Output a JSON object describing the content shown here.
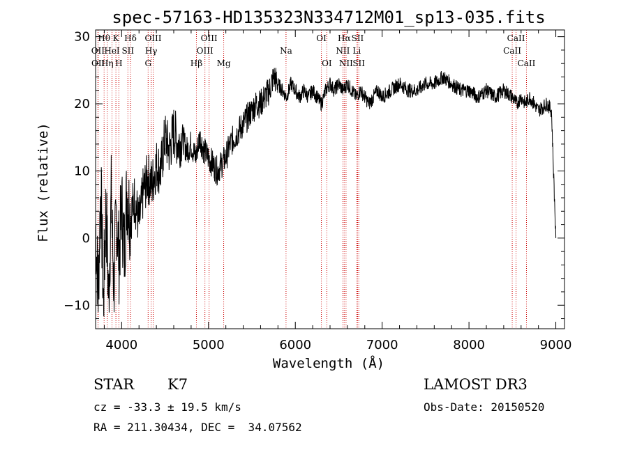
{
  "chart_data": {
    "type": "line",
    "title": "spec-57163-HD135323N334712M01_sp13-035.fits",
    "xlabel": "Wavelength (Å)",
    "ylabel": "Flux (relative)",
    "xlim": [
      3700,
      9100
    ],
    "ylim": [
      -13.5,
      31
    ],
    "x_ticks": [
      4000,
      5000,
      6000,
      7000,
      8000,
      9000
    ],
    "y_ticks": [
      -10,
      0,
      10,
      20,
      30
    ],
    "grid": false,
    "line_color": "#000000",
    "marker_color": "#cc0000",
    "series": [
      {
        "x": [
          3700,
          3730,
          3760,
          3790,
          3820,
          3850,
          3880,
          3910,
          3940,
          3970,
          4000,
          4030,
          4060,
          4100,
          4150,
          4200,
          4250,
          4300,
          4350,
          4400,
          4450,
          4500,
          4550,
          4600,
          4650,
          4700,
          4750,
          4800,
          4850,
          4900,
          4950,
          5000,
          5050,
          5100,
          5150,
          5200,
          5250,
          5300,
          5350,
          5400,
          5450,
          5500,
          5550,
          5600,
          5650,
          5700,
          5750,
          5800,
          5850,
          5900,
          5950,
          6000,
          6050,
          6100,
          6150,
          6200,
          6250,
          6300,
          6350,
          6400,
          6450,
          6500,
          6550,
          6600,
          6650,
          6700,
          6750,
          6800,
          6850,
          6900,
          6950,
          7000,
          7100,
          7200,
          7300,
          7400,
          7500,
          7600,
          7700,
          7800,
          7900,
          8000,
          8100,
          8200,
          8300,
          8400,
          8500,
          8550,
          8600,
          8650,
          8700,
          8800,
          8900,
          8950,
          9000
        ],
        "y": [
          2,
          -8,
          8,
          -10,
          5,
          -9,
          6,
          -7,
          4,
          -3,
          5,
          -2,
          7,
          3,
          6,
          2,
          7,
          9,
          8,
          11,
          10,
          15,
          13,
          16,
          14,
          15,
          13,
          14,
          12,
          15,
          13,
          12,
          11,
          10,
          11,
          12,
          14,
          15,
          16,
          17,
          18,
          19,
          20,
          20,
          21,
          22,
          24,
          23,
          22,
          21,
          23,
          22,
          21,
          22,
          21,
          22,
          21,
          20,
          22,
          23,
          22,
          23,
          22,
          23,
          22,
          21,
          22,
          21,
          20,
          21,
          22,
          21,
          22,
          23,
          22,
          22,
          23,
          23,
          24,
          23,
          22,
          22,
          21,
          22,
          21,
          22,
          21,
          20,
          21,
          20,
          21,
          19,
          20,
          19,
          0
        ]
      }
    ],
    "line_markers": [
      {
        "label": "OII",
        "wavelength": 3727,
        "row": 1
      },
      {
        "label": "OII",
        "wavelength": 3729,
        "row": 2
      },
      {
        "label": "Hθ",
        "wavelength": 3798,
        "row": 0
      },
      {
        "label": "Hη",
        "wavelength": 3835,
        "row": 2
      },
      {
        "label": "HeI",
        "wavelength": 3889,
        "row": 1
      },
      {
        "label": "K",
        "wavelength": 3934,
        "row": 0
      },
      {
        "label": "SII",
        "wavelength": 4072,
        "row": 1
      },
      {
        "label": "H",
        "wavelength": 3968,
        "row": 2
      },
      {
        "label": "Hδ",
        "wavelength": 4102,
        "row": 0
      },
      {
        "label": "OIII",
        "wavelength": 4363,
        "row": 0
      },
      {
        "label": "Hγ",
        "wavelength": 4340,
        "row": 1
      },
      {
        "label": "G",
        "wavelength": 4305,
        "row": 2
      },
      {
        "label": "Hβ",
        "wavelength": 4861,
        "row": 2
      },
      {
        "label": "OIII",
        "wavelength": 4959,
        "row": 1
      },
      {
        "label": "OIII",
        "wavelength": 5007,
        "row": 0
      },
      {
        "label": "Mg",
        "wavelength": 5175,
        "row": 2
      },
      {
        "label": "Na",
        "wavelength": 5893,
        "row": 1
      },
      {
        "label": "OI",
        "wavelength": 6300,
        "row": 0
      },
      {
        "label": "OI",
        "wavelength": 6363,
        "row": 2
      },
      {
        "label": "Hα",
        "wavelength": 6563,
        "row": 0
      },
      {
        "label": "NII",
        "wavelength": 6548,
        "row": 1
      },
      {
        "label": "NII",
        "wavelength": 6584,
        "row": 2
      },
      {
        "label": "SII",
        "wavelength": 6717,
        "row": 0
      },
      {
        "label": "Li",
        "wavelength": 6708,
        "row": 1
      },
      {
        "label": "SII",
        "wavelength": 6731,
        "row": 2
      },
      {
        "label": "CaII",
        "wavelength": 8542,
        "row": 0
      },
      {
        "label": "CaII",
        "wavelength": 8498,
        "row": 1
      },
      {
        "label": "CaII",
        "wavelength": 8662,
        "row": 2
      }
    ]
  },
  "info": {
    "object_type": "STAR",
    "subclass": "K7",
    "survey": "LAMOST DR3",
    "cz": "cz = -33.3 ± 19.5 km/s",
    "obs_date": "Obs-Date: 20150520",
    "coords": "RA = 211.30434, DEC =  34.07562"
  }
}
